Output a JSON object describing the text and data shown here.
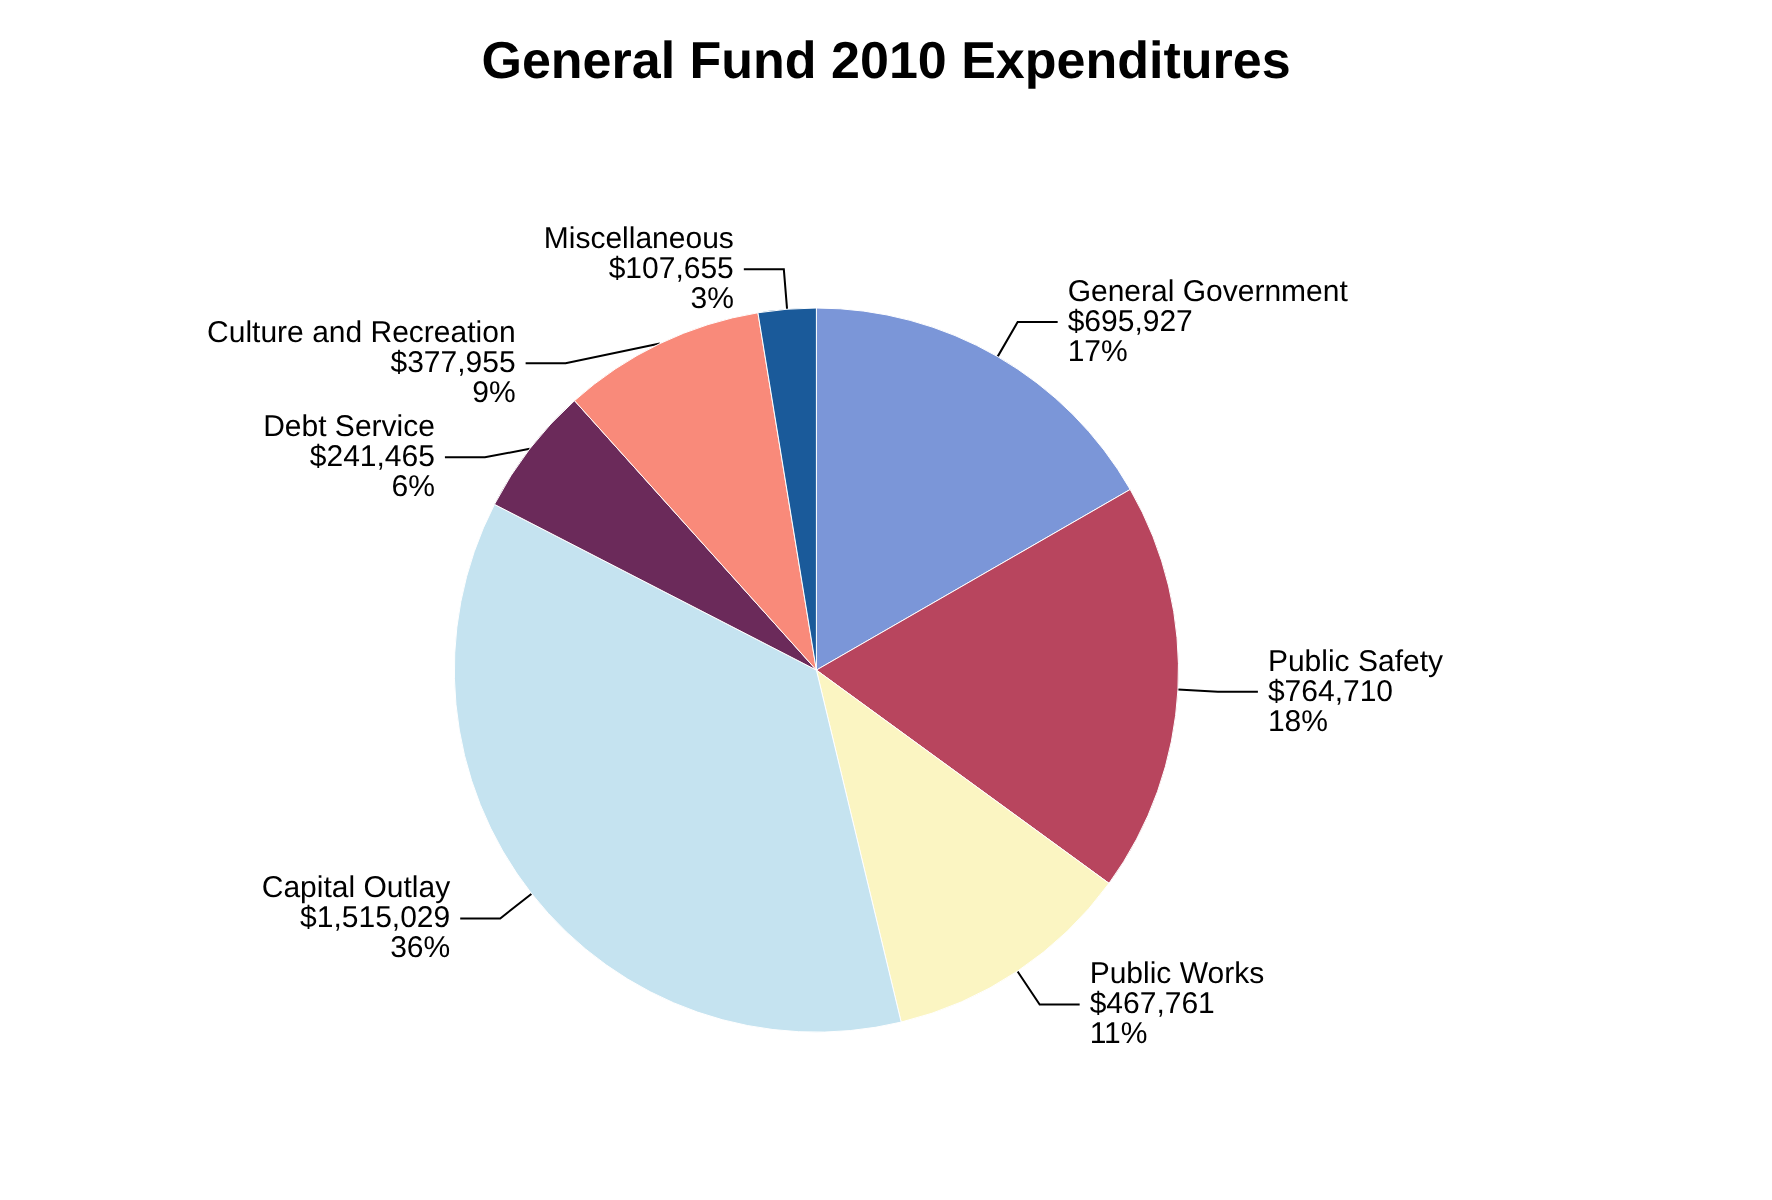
{
  "chart_data": {
    "type": "pie",
    "title": "General Fund 2010 Expenditures",
    "categories": [
      "General Government",
      "Public Safety",
      "Public Works",
      "Capital Outlay",
      "Debt Service",
      "Culture and Recreation",
      "Miscellaneous"
    ],
    "values": [
      695927,
      764710,
      467761,
      1515029,
      241465,
      377955,
      107655
    ],
    "value_labels": [
      "$695,927\n17%",
      "$764,710\n18%",
      "$467,761\n11%",
      "$1,515,029\n36%",
      "$241,465\n6%",
      "$377,955\n9%",
      "$107,655\n3%"
    ],
    "colors": [
      "#7b96d8",
      "#b8455e",
      "#fbf5c2",
      "#c5e3f0",
      "#6b2a5a",
      "#f98a7a",
      "#1a5a9a"
    ],
    "legend": false
  }
}
